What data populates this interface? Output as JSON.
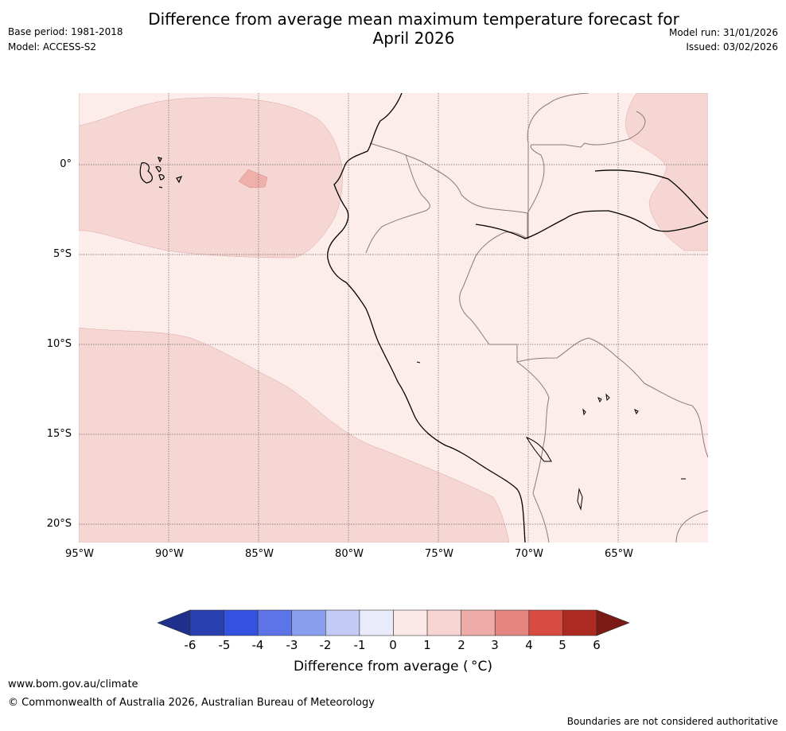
{
  "title": {
    "line1": "Difference from average mean maximum temperature forecast for",
    "line2": "April 2026"
  },
  "meta": {
    "base_period": "Base period: 1981-2018",
    "model": "Model: ACCESS-S2",
    "model_run": "Model run: 31/01/2026",
    "issued": "Issued: 03/02/2026"
  },
  "axes": {
    "lat_labels": [
      "0°",
      "5°S",
      "10°S",
      "15°S",
      "20°S"
    ],
    "lon_labels": [
      "95°W",
      "90°W",
      "85°W",
      "80°W",
      "75°W",
      "70°W",
      "65°W"
    ]
  },
  "map_data": {
    "lon_range": [
      -95,
      -60
    ],
    "lat_range": [
      -21,
      4
    ],
    "regions": [
      {
        "name": "ocean north-west anomaly",
        "band": "1 to 2"
      },
      {
        "name": "ocean south-west anomaly",
        "band": "1 to 2"
      },
      {
        "name": "Amazon north-east anomaly",
        "band": "1 to 2"
      },
      {
        "name": "small patch west of Ecuador",
        "band": "2 to 3"
      },
      {
        "name": "background",
        "band": "0 to 1"
      }
    ]
  },
  "colorbar": {
    "ticks": [
      "-6",
      "-5",
      "-4",
      "-3",
      "-2",
      "-1",
      "0",
      "1",
      "2",
      "3",
      "4",
      "5",
      "6"
    ],
    "colors": [
      "#1f2f8c",
      "#2a3fb0",
      "#3352e0",
      "#5c74e8",
      "#8a9ef0",
      "#c2caf5",
      "#e9ebfb",
      "#fce9e7",
      "#f6d4d2",
      "#edaca8",
      "#e5857f",
      "#d94a40",
      "#ad2a22",
      "#7a1a15"
    ],
    "label": "Difference from average ( °C)"
  },
  "footer": {
    "url": "www.bom.gov.au/climate",
    "copyright": "© Commonwealth of Australia 2026, Australian Bureau of Meteorology",
    "disclaimer": "Boundaries are not considered authoritative"
  }
}
